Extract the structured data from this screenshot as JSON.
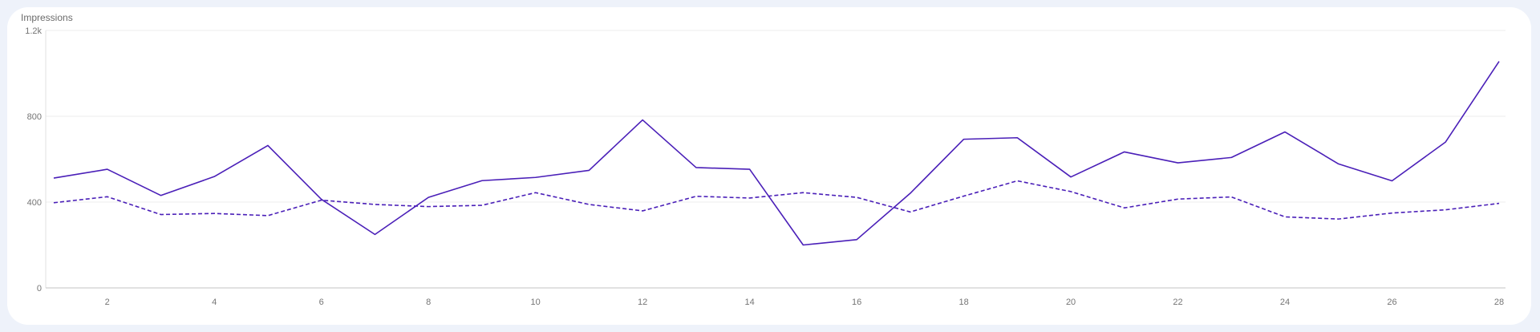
{
  "chart_data": {
    "type": "line",
    "title": "Impressions",
    "xlabel": "",
    "ylabel": "",
    "x": [
      1,
      2,
      3,
      4,
      5,
      6,
      7,
      8,
      9,
      10,
      11,
      12,
      13,
      14,
      15,
      16,
      17,
      18,
      19,
      20,
      21,
      22,
      23,
      24,
      25,
      26,
      27,
      28
    ],
    "x_ticks": [
      2,
      4,
      6,
      8,
      10,
      12,
      14,
      16,
      18,
      20,
      22,
      24,
      26,
      28
    ],
    "y_ticks": [
      {
        "value": 0,
        "label": "0"
      },
      {
        "value": 400,
        "label": "400"
      },
      {
        "value": 800,
        "label": "800"
      },
      {
        "value": 1200,
        "label": "1.2k"
      }
    ],
    "ylim": [
      0,
      1200
    ],
    "grid": true,
    "legend": "none",
    "series": [
      {
        "style": "solid",
        "color": "#4a1fb8",
        "values": [
          512,
          553,
          431,
          519,
          664,
          413,
          249,
          422,
          500,
          515,
          548,
          783,
          561,
          553,
          200,
          225,
          441,
          693,
          700,
          517,
          634,
          583,
          608,
          727,
          578,
          499,
          680,
          1056
        ]
      },
      {
        "style": "dashed",
        "color": "#4a1fb8",
        "values": [
          397,
          425,
          342,
          347,
          337,
          409,
          389,
          379,
          385,
          444,
          389,
          359,
          427,
          419,
          444,
          422,
          354,
          428,
          499,
          449,
          373,
          414,
          424,
          331,
          321,
          349,
          364,
          394
        ]
      }
    ]
  }
}
